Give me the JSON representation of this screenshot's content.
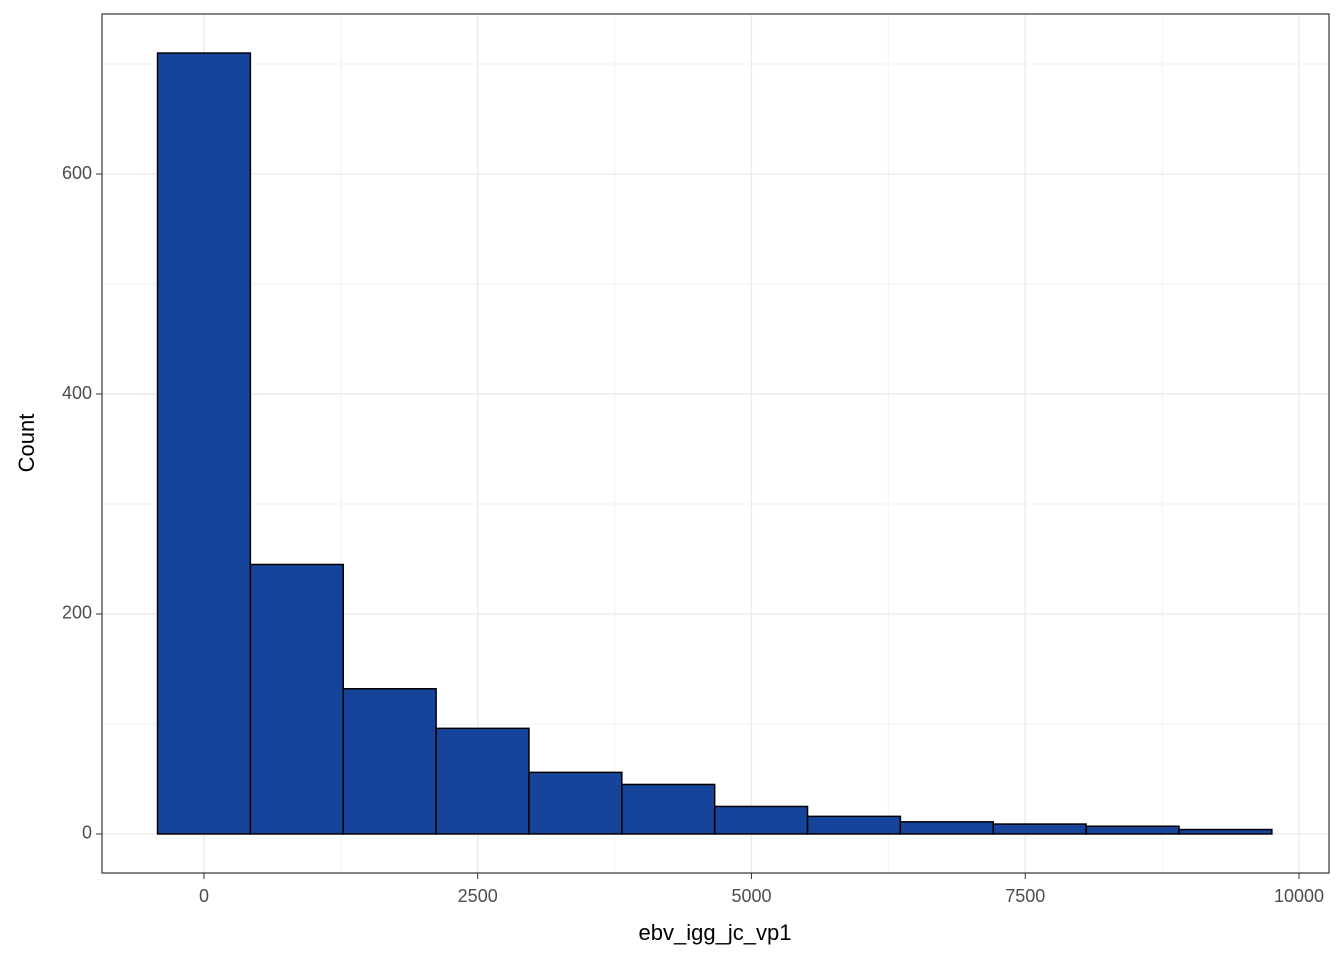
{
  "chart_data": {
    "type": "histogram",
    "x_label": "ebv_igg_jc_vp1",
    "y_label": "Count",
    "bins": [
      -424,
      424,
      1272,
      2120,
      2968,
      3816,
      4664,
      5512,
      6360,
      7208,
      8056,
      8904,
      9752
    ],
    "values": [
      710,
      245,
      132,
      96,
      56,
      45,
      25,
      16,
      11,
      9,
      7,
      4
    ],
    "color": "#17449b",
    "edge_color": "#000000",
    "xlim": [
      -931,
      10274
    ],
    "xticks": [
      0,
      2500,
      5000,
      7500,
      10000
    ],
    "ylim": [
      -35.5,
      745.5
    ],
    "yticks": [
      0,
      200,
      400,
      600
    ],
    "grid": true
  }
}
